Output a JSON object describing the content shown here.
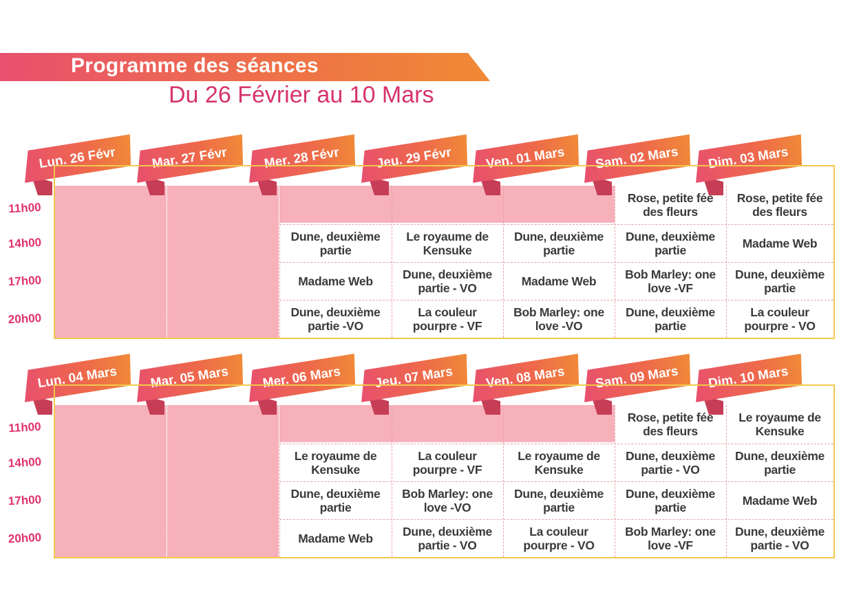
{
  "header": {
    "title": "Programme des séances",
    "subtitle": "Du 26 Février au 10 Mars"
  },
  "colors": {
    "accent_pink": "#e0336d",
    "gradient_start": "#e8506e",
    "gradient_end": "#f08a35",
    "closed": "#f7b1bb",
    "border": "#f2c94c"
  },
  "times": [
    "11h00",
    "14h00",
    "17h00",
    "20h00"
  ],
  "weeks": [
    {
      "days": [
        {
          "label": "Lun. 26 Févr",
          "closed": true,
          "shows": [
            "",
            "",
            "",
            ""
          ]
        },
        {
          "label": "Mar. 27 Févr",
          "closed": true,
          "shows": [
            "",
            "",
            "",
            ""
          ]
        },
        {
          "label": "Mer. 28 Févr",
          "closed": false,
          "shows": [
            "",
            "Dune, deuxième partie",
            "Madame Web",
            "Dune, deuxième partie -VO"
          ]
        },
        {
          "label": "Jeu. 29 Févr",
          "closed": false,
          "shows": [
            "",
            "Le royaume de Kensuke",
            "Dune, deuxième partie - VO",
            "La couleur pourpre - VF"
          ]
        },
        {
          "label": "Ven. 01 Mars",
          "closed": false,
          "shows": [
            "",
            "Dune, deuxième partie",
            "Madame Web",
            "Bob Marley: one love -VO"
          ]
        },
        {
          "label": "Sam. 02 Mars",
          "closed": false,
          "shows": [
            "Rose, petite fée des fleurs",
            "Dune, deuxième partie",
            "Bob Marley: one love -VF",
            "Dune, deuxième partie"
          ]
        },
        {
          "label": "Dim. 03 Mars",
          "closed": false,
          "shows": [
            "Rose, petite fée des fleurs",
            "Madame Web",
            "Dune, deuxième partie",
            "La couleur pourpre - VO"
          ]
        }
      ]
    },
    {
      "days": [
        {
          "label": "Lun. 04 Mars",
          "closed": true,
          "shows": [
            "",
            "",
            "",
            ""
          ]
        },
        {
          "label": "Mar. 05 Mars",
          "closed": true,
          "shows": [
            "",
            "",
            "",
            ""
          ]
        },
        {
          "label": "Mer. 06 Mars",
          "closed": false,
          "shows": [
            "",
            "Le royaume de Kensuke",
            "Dune, deuxième partie",
            "Madame Web"
          ]
        },
        {
          "label": "Jeu. 07 Mars",
          "closed": false,
          "shows": [
            "",
            "La couleur pourpre - VF",
            "Bob Marley: one love -VO",
            "Dune, deuxième partie - VO"
          ]
        },
        {
          "label": "Ven. 08 Mars",
          "closed": false,
          "shows": [
            "",
            "Le royaume de Kensuke",
            "Dune, deuxième partie",
            "La couleur pourpre - VO"
          ]
        },
        {
          "label": "Sam. 09 Mars",
          "closed": false,
          "shows": [
            "Rose, petite fée des fleurs",
            "Dune, deuxième partie - VO",
            "Dune, deuxième partie",
            "Bob Marley: one love -VF"
          ]
        },
        {
          "label": "Dim. 10 Mars",
          "closed": false,
          "shows": [
            "Le royaume de Kensuke",
            "Dune, deuxième partie",
            "Madame Web",
            "Dune, deuxième partie - VO"
          ]
        }
      ]
    }
  ]
}
